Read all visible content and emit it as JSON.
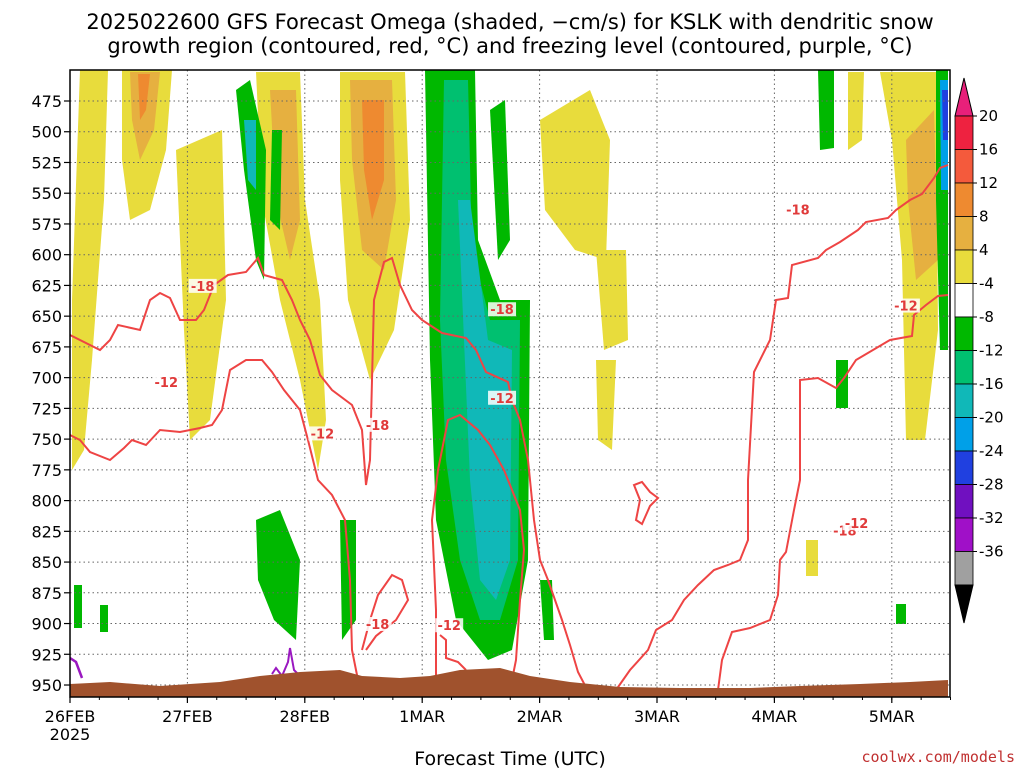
{
  "chart_data": {
    "type": "heatmap",
    "title_lines": [
      "2025022600 GFS Forecast Omega (shaded, −cm/s) for KSLK with dendritic snow",
      "growth region (contoured, red, °C) and freezing level (contoured, purple, °C)"
    ],
    "xlabel": "Forecast Time (UTC)",
    "credit": "coolwx.com/models",
    "x_ticks": [
      {
        "label": "26FEB",
        "sub": "2025",
        "day": 0
      },
      {
        "label": "27FEB",
        "sub": "",
        "day": 1
      },
      {
        "label": "28FEB",
        "sub": "",
        "day": 2
      },
      {
        "label": "1MAR",
        "sub": "",
        "day": 3
      },
      {
        "label": "2MAR",
        "sub": "",
        "day": 4
      },
      {
        "label": "3MAR",
        "sub": "",
        "day": 5
      },
      {
        "label": "4MAR",
        "sub": "",
        "day": 6
      },
      {
        "label": "5MAR",
        "sub": "",
        "day": 7
      }
    ],
    "x_range_days": [
      0,
      7.5
    ],
    "y_ticks": [
      475,
      500,
      525,
      550,
      575,
      600,
      625,
      650,
      675,
      700,
      725,
      750,
      775,
      800,
      825,
      850,
      875,
      900,
      925,
      950
    ],
    "y_range_hpa": [
      460,
      962
    ],
    "colorbar": {
      "labels": [
        "20",
        "16",
        "12",
        "8",
        "4",
        "-4",
        "-8",
        "-12",
        "-16",
        "-20",
        "-24",
        "-28",
        "-32",
        "-36"
      ],
      "colors": [
        "#ee2240",
        "#f45a3c",
        "#ee8a30",
        "#e6b040",
        "#e8dc3c",
        "#ffffff",
        "#00b800",
        "#00c070",
        "#10b8b8",
        "#00a0e8",
        "#2040e0",
        "#7010c0",
        "#a010c8",
        "#a0a0a0"
      ],
      "top_arrow_color": "#e8207a",
      "bottom_arrow_color": "#000000"
    },
    "contour_labels": [
      {
        "text": "-18",
        "day": 1.13,
        "hpa": 627
      },
      {
        "text": "-12",
        "day": 0.82,
        "hpa": 705
      },
      {
        "text": "-12",
        "day": 2.15,
        "hpa": 747
      },
      {
        "text": "-18",
        "day": 2.62,
        "hpa": 740
      },
      {
        "text": "-18",
        "day": 2.62,
        "hpa": 902
      },
      {
        "text": "-12",
        "day": 3.23,
        "hpa": 903
      },
      {
        "text": "-18",
        "day": 3.68,
        "hpa": 646
      },
      {
        "text": "-12",
        "day": 3.68,
        "hpa": 718
      },
      {
        "text": "-18",
        "day": 6.2,
        "hpa": 565
      },
      {
        "text": "-18",
        "day": 6.6,
        "hpa": 826
      },
      {
        "text": "-12",
        "day": 6.7,
        "hpa": 820
      },
      {
        "text": "-12",
        "day": 7.12,
        "hpa": 643
      }
    ]
  }
}
